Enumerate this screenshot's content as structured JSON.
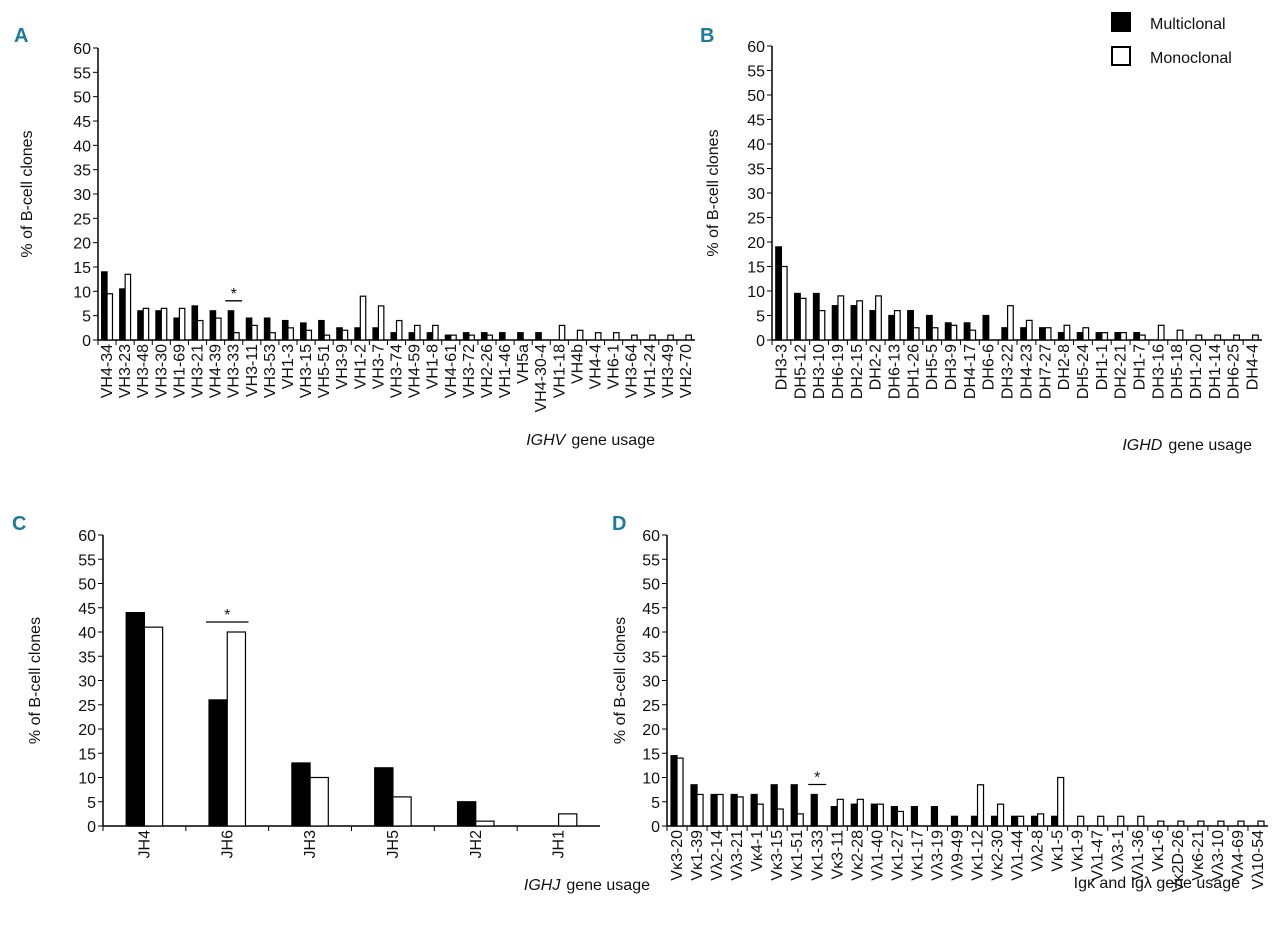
{
  "chart_data": [
    {
      "type": "bar",
      "panel": "A",
      "ylabel": "% of B-cell clones",
      "xlabel": {
        "italic": "IGHV",
        "text": "gene usage"
      },
      "categories": [
        "VH4-34",
        "VH3-23",
        "VH3-48",
        "VH3-30",
        "VH1-69",
        "VH3-21",
        "VH4-39",
        "VH3-33",
        "VH3-11",
        "VH3-53",
        "VH1-3",
        "VH3-15",
        "VH5-51",
        "VH3-9",
        "VH1-2",
        "VH3-7",
        "VH3-74",
        "VH4-59",
        "VH1-8",
        "VH4-61",
        "VH3-72",
        "VH2-26",
        "VH1-46",
        "VH5a",
        "VH4-30-4",
        "VH1-18",
        "VH4b",
        "VH4-4",
        "VH6-1",
        "VH3-64",
        "VH1-24",
        "VH3-49",
        "VH2-70"
      ],
      "series": [
        {
          "color": "#000000",
          "values": [
            14,
            10.5,
            6,
            6,
            4.5,
            7,
            6,
            6,
            4.5,
            4.5,
            4,
            3.5,
            4,
            2.5,
            2.5,
            2.5,
            1.5,
            1.5,
            1.5,
            1,
            1.5,
            1.5,
            1.5,
            1.5,
            1.5,
            0,
            0,
            0,
            0,
            0,
            0,
            0,
            0
          ]
        },
        {
          "color": "#ffffff",
          "values": [
            9.5,
            13.5,
            6.5,
            6.5,
            6.5,
            4,
            4.5,
            1.5,
            3,
            1.5,
            2.5,
            2,
            1,
            2,
            9,
            7,
            4,
            3,
            3,
            1,
            1,
            1,
            0,
            0,
            0,
            3,
            2,
            1.5,
            1.5,
            1,
            1,
            1,
            1
          ]
        }
      ],
      "annotations": [
        {
          "text": "*",
          "category": "VH3-33"
        }
      ],
      "ylim": [
        0,
        60
      ],
      "yticks": [
        0,
        5,
        10,
        15,
        20,
        25,
        30,
        35,
        40,
        45,
        50,
        55,
        60
      ]
    },
    {
      "type": "bar",
      "panel": "B",
      "ylabel": "% of B-cell clones",
      "xlabel": {
        "italic": "IGHD",
        "text": "gene usage"
      },
      "categories": [
        "DH3-3",
        "DH5-12",
        "DH3-10",
        "DH6-19",
        "DH2-15",
        "DH2-2",
        "DH6-13",
        "DH1-26",
        "DH5-5",
        "DH3-9",
        "DH4-17",
        "DH6-6",
        "DH3-22",
        "DH4-23",
        "DH7-27",
        "DH2-8",
        "DH5-24",
        "DH1-1",
        "DH2-21",
        "DH1-7",
        "DH3-16",
        "DH5-18",
        "DH1-20",
        "DH1-14",
        "DH6-25",
        "DH4-4"
      ],
      "series": [
        {
          "name": "Multiclonal",
          "color": "#000000",
          "values": [
            19,
            9.5,
            9.5,
            7,
            7,
            6,
            5,
            6,
            5,
            3.5,
            3.5,
            5,
            2.5,
            2.5,
            2.5,
            1.5,
            1.5,
            1.5,
            1.5,
            1.5,
            0,
            0,
            0,
            0,
            0,
            0
          ]
        },
        {
          "name": "Monoclonal",
          "color": "#ffffff",
          "values": [
            15,
            8.5,
            6,
            9,
            8,
            9,
            6,
            2.5,
            2.5,
            3,
            2,
            0,
            7,
            4,
            2.5,
            3,
            2.5,
            1.5,
            1.5,
            1,
            3,
            2,
            1,
            1,
            1,
            1
          ]
        }
      ],
      "legend": "upper right",
      "ylim": [
        0,
        60
      ],
      "yticks": [
        0,
        5,
        10,
        15,
        20,
        25,
        30,
        35,
        40,
        45,
        50,
        55,
        60
      ]
    },
    {
      "type": "bar",
      "panel": "C",
      "ylabel": "% of B-cell clones",
      "xlabel": {
        "italic": "IGHJ",
        "text": "gene usage"
      },
      "categories": [
        "JH4",
        "JH6",
        "JH3",
        "JH5",
        "JH2",
        "JH1"
      ],
      "series": [
        {
          "color": "#000000",
          "values": [
            44,
            26,
            13,
            12,
            5,
            0
          ]
        },
        {
          "color": "#ffffff",
          "values": [
            41,
            40,
            10,
            6,
            1,
            2.5
          ]
        }
      ],
      "annotations": [
        {
          "text": "*",
          "category": "JH6"
        }
      ],
      "ylim": [
        0,
        60
      ],
      "yticks": [
        0,
        5,
        10,
        15,
        20,
        25,
        30,
        35,
        40,
        45,
        50,
        55,
        60
      ]
    },
    {
      "type": "bar",
      "panel": "D",
      "ylabel": "% of B-cell clones",
      "xlabel": "Igκ and Igλ gene usage",
      "categories": [
        "Vκ3-20",
        "Vκ1-39",
        "Vλ2-14",
        "Vλ3-21",
        "Vκ4-1",
        "Vκ3-15",
        "Vκ1-51",
        "Vκ1-33",
        "Vκ3-11",
        "Vκ2-28",
        "Vλ1-40",
        "Vκ1-27",
        "Vκ1-17",
        "Vλ3-19",
        "Vλ9-49",
        "Vκ1-12",
        "Vκ2-30",
        "Vλ1-44",
        "Vλ2-8",
        "Vκ1-5",
        "Vκ1-9",
        "Vλ1-47",
        "Vλ3-1",
        "Vλ1-36",
        "Vκ1-6",
        "Vκ2D-26",
        "Vκ6-21",
        "Vλ3-10",
        "Vλ4-69",
        "Vλ10-54"
      ],
      "series": [
        {
          "color": "#000000",
          "values": [
            14.5,
            8.5,
            6.5,
            6.5,
            6.5,
            8.5,
            8.5,
            6.5,
            4,
            4.5,
            4.5,
            4,
            4,
            4,
            2,
            2,
            2,
            2,
            2,
            2,
            0,
            0,
            0,
            0,
            0,
            0,
            0,
            0,
            0,
            0
          ]
        },
        {
          "color": "#ffffff",
          "values": [
            14,
            6.5,
            6.5,
            6,
            4.5,
            3.5,
            2.5,
            0,
            5.5,
            5.5,
            4.5,
            3,
            0,
            0,
            0,
            8.5,
            4.5,
            2,
            2.5,
            10,
            2,
            2,
            2,
            2,
            1,
            1,
            1,
            1,
            1,
            1
          ]
        }
      ],
      "annotations": [
        {
          "text": "*",
          "category": "Vκ1-33"
        }
      ],
      "ylim": [
        0,
        60
      ],
      "yticks": [
        0,
        5,
        10,
        15,
        20,
        25,
        30,
        35,
        40,
        45,
        50,
        55,
        60
      ]
    }
  ]
}
